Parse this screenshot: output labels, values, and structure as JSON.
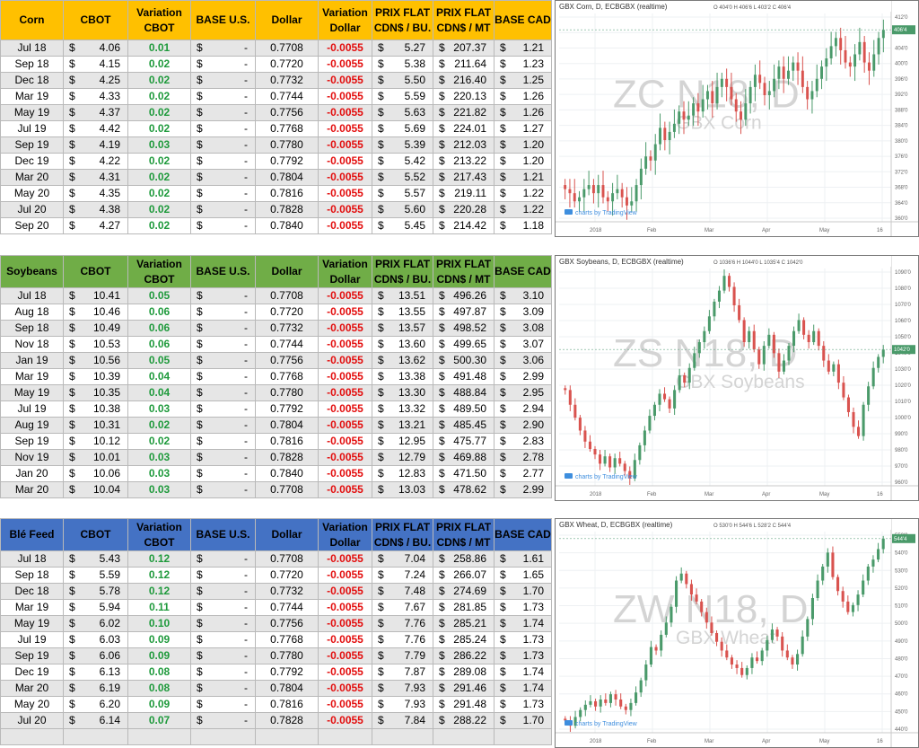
{
  "colors": {
    "corn_header": "#ffc000",
    "soy_header": "#70ad47",
    "wheat_header": "#4472c4",
    "positive": "#1f9a3c",
    "negative": "#e30d0d",
    "candle_up": "#4a9a6a",
    "candle_down": "#d9534f"
  },
  "headers": {
    "cbot": "CBOT",
    "variation": "Variation",
    "cbot2": "CBOT",
    "base_us": "BASE U.S.",
    "dollar": "Dollar",
    "variation_dollar": "Variation",
    "dollar2": "Dollar",
    "prix_flat": "PRIX FLAT",
    "cdn_bu": "CDN$ / BU.",
    "prix_flat2": "PRIX FLAT",
    "cdn_mt": "CDN$ / MT",
    "base_cad": "BASE CAD"
  },
  "currency_symbol": "$",
  "dash": "-",
  "sections": {
    "corn": {
      "name": "Corn",
      "rows": [
        [
          "Jul 18",
          "4.06",
          "0.01",
          "0.7708",
          "-0.0055",
          "5.27",
          "207.37",
          "1.21"
        ],
        [
          "Sep 18",
          "4.15",
          "0.02",
          "0.7720",
          "-0.0055",
          "5.38",
          "211.64",
          "1.23"
        ],
        [
          "Dec 18",
          "4.25",
          "0.02",
          "0.7732",
          "-0.0055",
          "5.50",
          "216.40",
          "1.25"
        ],
        [
          "Mar 19",
          "4.33",
          "0.02",
          "0.7744",
          "-0.0055",
          "5.59",
          "220.13",
          "1.26"
        ],
        [
          "May 19",
          "4.37",
          "0.02",
          "0.7756",
          "-0.0055",
          "5.63",
          "221.82",
          "1.26"
        ],
        [
          "Jul 19",
          "4.42",
          "0.02",
          "0.7768",
          "-0.0055",
          "5.69",
          "224.01",
          "1.27"
        ],
        [
          "Sep 19",
          "4.19",
          "0.03",
          "0.7780",
          "-0.0055",
          "5.39",
          "212.03",
          "1.20"
        ],
        [
          "Dec 19",
          "4.22",
          "0.02",
          "0.7792",
          "-0.0055",
          "5.42",
          "213.22",
          "1.20"
        ],
        [
          "Mar 20",
          "4.31",
          "0.02",
          "0.7804",
          "-0.0055",
          "5.52",
          "217.43",
          "1.21"
        ],
        [
          "May 20",
          "4.35",
          "0.02",
          "0.7816",
          "-0.0055",
          "5.57",
          "219.11",
          "1.22"
        ],
        [
          "Jul 20",
          "4.38",
          "0.02",
          "0.7828",
          "-0.0055",
          "5.60",
          "220.28",
          "1.22"
        ],
        [
          "Sep 20",
          "4.27",
          "0.02",
          "0.7840",
          "-0.0055",
          "5.45",
          "214.42",
          "1.18"
        ]
      ]
    },
    "soybeans": {
      "name": "Soybeans",
      "rows": [
        [
          "Jul 18",
          "10.41",
          "0.05",
          "0.7708",
          "-0.0055",
          "13.51",
          "496.26",
          "3.10"
        ],
        [
          "Aug 18",
          "10.46",
          "0.06",
          "0.7720",
          "-0.0055",
          "13.55",
          "497.87",
          "3.09"
        ],
        [
          "Sep 18",
          "10.49",
          "0.06",
          "0.7732",
          "-0.0055",
          "13.57",
          "498.52",
          "3.08"
        ],
        [
          "Nov 18",
          "10.53",
          "0.06",
          "0.7744",
          "-0.0055",
          "13.60",
          "499.65",
          "3.07"
        ],
        [
          "Jan 19",
          "10.56",
          "0.05",
          "0.7756",
          "-0.0055",
          "13.62",
          "500.30",
          "3.06"
        ],
        [
          "Mar 19",
          "10.39",
          "0.04",
          "0.7768",
          "-0.0055",
          "13.38",
          "491.48",
          "2.99"
        ],
        [
          "May 19",
          "10.35",
          "0.04",
          "0.7780",
          "-0.0055",
          "13.30",
          "488.84",
          "2.95"
        ],
        [
          "Jul 19",
          "10.38",
          "0.03",
          "0.7792",
          "-0.0055",
          "13.32",
          "489.50",
          "2.94"
        ],
        [
          "Aug 19",
          "10.31",
          "0.02",
          "0.7804",
          "-0.0055",
          "13.21",
          "485.45",
          "2.90"
        ],
        [
          "Sep 19",
          "10.12",
          "0.02",
          "0.7816",
          "-0.0055",
          "12.95",
          "475.77",
          "2.83"
        ],
        [
          "Nov 19",
          "10.01",
          "0.03",
          "0.7828",
          "-0.0055",
          "12.79",
          "469.88",
          "2.78"
        ],
        [
          "Jan 20",
          "10.06",
          "0.03",
          "0.7840",
          "-0.0055",
          "12.83",
          "471.50",
          "2.77"
        ],
        [
          "Mar 20",
          "10.04",
          "0.03",
          "0.7708",
          "-0.0055",
          "13.03",
          "478.62",
          "2.99"
        ]
      ]
    },
    "wheat": {
      "name": "Blé Feed",
      "rows": [
        [
          "Jul 18",
          "5.43",
          "0.12",
          "0.7708",
          "-0.0055",
          "7.04",
          "258.86",
          "1.61"
        ],
        [
          "Sep 18",
          "5.59",
          "0.12",
          "0.7720",
          "-0.0055",
          "7.24",
          "266.07",
          "1.65"
        ],
        [
          "Dec 18",
          "5.78",
          "0.12",
          "0.7732",
          "-0.0055",
          "7.48",
          "274.69",
          "1.70"
        ],
        [
          "Mar 19",
          "5.94",
          "0.11",
          "0.7744",
          "-0.0055",
          "7.67",
          "281.85",
          "1.73"
        ],
        [
          "May 19",
          "6.02",
          "0.10",
          "0.7756",
          "-0.0055",
          "7.76",
          "285.21",
          "1.74"
        ],
        [
          "Jul 19",
          "6.03",
          "0.09",
          "0.7768",
          "-0.0055",
          "7.76",
          "285.24",
          "1.73"
        ],
        [
          "Sep 19",
          "6.06",
          "0.09",
          "0.7780",
          "-0.0055",
          "7.79",
          "286.22",
          "1.73"
        ],
        [
          "Dec 19",
          "6.13",
          "0.08",
          "0.7792",
          "-0.0055",
          "7.87",
          "289.08",
          "1.74"
        ],
        [
          "Mar 20",
          "6.19",
          "0.08",
          "0.7804",
          "-0.0055",
          "7.93",
          "291.46",
          "1.74"
        ],
        [
          "May 20",
          "6.20",
          "0.09",
          "0.7816",
          "-0.0055",
          "7.93",
          "291.48",
          "1.73"
        ],
        [
          "Jul 20",
          "6.14",
          "0.07",
          "0.7828",
          "-0.0055",
          "7.84",
          "288.22",
          "1.70"
        ]
      ]
    }
  },
  "charts": {
    "corn": {
      "title": "GBX Corn, D, ECBGBX (realtime)",
      "ohlc": "O 404'0 H 406'6 L 403'2 C 406'4",
      "watermark": "ZC N18, D",
      "watermark_sub": "GBX Corn",
      "credit": "charts by TradingView",
      "y_ticks": [
        "412'0",
        "408'0",
        "404'0",
        "400'0",
        "396'0",
        "392'0",
        "388'0",
        "384'0",
        "380'0",
        "376'0",
        "372'0",
        "368'0",
        "364'0",
        "360'0"
      ],
      "x_ticks": [
        "2018",
        "Feb",
        "Mar",
        "Apr",
        "May",
        "16"
      ],
      "last_price": "406'4",
      "closes": [
        367,
        366,
        364,
        365,
        367,
        368,
        366,
        368,
        365,
        364,
        366,
        367,
        365,
        363,
        364,
        368,
        372,
        375,
        374,
        378,
        382,
        379,
        381,
        383,
        386,
        384,
        385,
        388,
        386,
        389,
        391,
        388,
        392,
        394,
        392,
        389,
        386,
        384,
        388,
        392,
        395,
        393,
        390,
        391,
        394,
        397,
        394,
        396,
        398,
        396,
        392,
        389,
        391,
        394,
        397,
        399,
        402,
        404,
        401,
        398,
        397,
        400,
        403,
        398,
        396,
        400,
        404,
        406
      ]
    },
    "soybeans": {
      "title": "GBX Soybeans, D, ECBGBX (realtime)",
      "ohlc": "O 1036'6 H 1044'0 L 1035'4 C 1042'0",
      "watermark": "ZS N18, D",
      "watermark_sub": "GBX Soybeans",
      "credit": "charts by TradingView",
      "y_ticks": [
        "1090'0",
        "1080'0",
        "1070'0",
        "1060'0",
        "1050'0",
        "1040'0",
        "1030'0",
        "1020'0",
        "1010'0",
        "1000'0",
        "990'0",
        "980'0",
        "970'0",
        "960'0"
      ],
      "x_ticks": [
        "2018",
        "Feb",
        "Mar",
        "Apr",
        "May",
        "16"
      ],
      "last_price": "1042'0",
      "closes": [
        1020,
        1012,
        1005,
        998,
        992,
        988,
        985,
        980,
        984,
        978,
        983,
        980,
        976,
        972,
        982,
        990,
        998,
        1006,
        1012,
        1018,
        1015,
        1010,
        1020,
        1028,
        1024,
        1032,
        1040,
        1046,
        1052,
        1060,
        1068,
        1074,
        1082,
        1076,
        1066,
        1058,
        1046,
        1052,
        1042,
        1034,
        1044,
        1050,
        1040,
        1030,
        1036,
        1044,
        1052,
        1058,
        1050,
        1046,
        1052,
        1044,
        1036,
        1030,
        1034,
        1024,
        1016,
        1008,
        1000,
        995,
        1012,
        1022,
        1032,
        1038,
        1042
      ]
    },
    "wheat": {
      "title": "GBX Wheat, D, ECBGBX (realtime)",
      "ohlc": "O 530'0 H 544'6 L 528'2 C 544'4",
      "watermark": "ZW N18, D",
      "watermark_sub": "GBX Wheat",
      "credit": "charts by TradingView",
      "y_ticks": [
        "550'0",
        "540'0",
        "530'0",
        "520'0",
        "510'0",
        "500'0",
        "490'0",
        "480'0",
        "470'0",
        "460'0",
        "450'0",
        "440'0"
      ],
      "x_ticks": [
        "2018",
        "Feb",
        "Mar",
        "Apr",
        "May",
        "16"
      ],
      "last_price": "544'4",
      "closes": [
        440,
        437,
        442,
        446,
        449,
        451,
        448,
        452,
        450,
        455,
        452,
        448,
        446,
        450,
        456,
        463,
        472,
        482,
        480,
        489,
        496,
        505,
        520,
        524,
        518,
        512,
        508,
        502,
        496,
        490,
        485,
        480,
        476,
        472,
        470,
        466,
        470,
        476,
        474,
        480,
        486,
        492,
        488,
        480,
        476,
        472,
        478,
        488,
        498,
        510,
        520,
        528,
        536,
        522,
        514,
        508,
        502,
        506,
        512,
        520,
        528,
        532,
        538,
        544
      ]
    }
  }
}
